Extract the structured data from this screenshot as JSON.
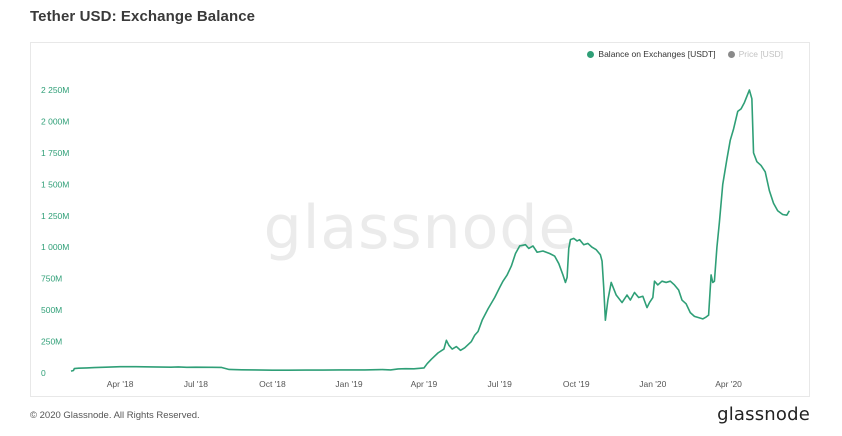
{
  "page": {
    "title": "Tether USD: Exchange Balance",
    "watermark": "glassnode",
    "copyright": "© 2020 Glassnode. All Rights Reserved.",
    "logo": "glassnode"
  },
  "legend": {
    "items": [
      {
        "label": "Balance on Exchanges [USDT]",
        "color": "#2f9f77",
        "active": true
      },
      {
        "label": "Price [USD]",
        "color": "#8a8a8a",
        "active": false
      }
    ]
  },
  "chart_data": {
    "type": "line",
    "title": "Tether USD: Exchange Balance",
    "xlabel": "",
    "ylabel": "",
    "ylim": [
      0,
      2250
    ],
    "y_ticks": [
      0,
      250,
      500,
      750,
      1000,
      1250,
      1500,
      1750,
      2000,
      2250
    ],
    "y_tick_labels": [
      "0",
      "250M",
      "500M",
      "750M",
      "1 000M",
      "1 250M",
      "1 500M",
      "1 750M",
      "2 000M",
      "2 250M"
    ],
    "x_tick_labels": [
      "Apr '18",
      "Jul '18",
      "Oct '18",
      "Jan '19",
      "Apr '19",
      "Jul '19",
      "Oct '19",
      "Jan '20",
      "Apr '20"
    ],
    "x_tick_dates": [
      "2018-04-01",
      "2018-07-01",
      "2018-10-01",
      "2019-01-01",
      "2019-04-01",
      "2019-07-01",
      "2019-10-01",
      "2020-01-01",
      "2020-04-01"
    ],
    "xlim": [
      "2018-02-01",
      "2020-06-15"
    ],
    "grid": false,
    "legend_position": "top-right",
    "series": [
      {
        "name": "Balance on Exchanges [USDT]",
        "color": "#2f9f77",
        "points": [
          [
            "2018-02-01",
            15
          ],
          [
            "2018-02-04",
            20
          ],
          [
            "2018-02-05",
            35
          ],
          [
            "2018-02-10",
            38
          ],
          [
            "2018-02-20",
            40
          ],
          [
            "2018-03-01",
            43
          ],
          [
            "2018-03-15",
            46
          ],
          [
            "2018-04-01",
            50
          ],
          [
            "2018-04-20",
            50
          ],
          [
            "2018-05-10",
            48
          ],
          [
            "2018-06-01",
            46
          ],
          [
            "2018-06-10",
            48
          ],
          [
            "2018-06-20",
            45
          ],
          [
            "2018-07-01",
            46
          ],
          [
            "2018-07-20",
            45
          ],
          [
            "2018-08-01",
            44
          ],
          [
            "2018-08-10",
            28
          ],
          [
            "2018-08-25",
            25
          ],
          [
            "2018-09-10",
            24
          ],
          [
            "2018-10-01",
            22
          ],
          [
            "2018-10-20",
            22
          ],
          [
            "2018-11-10",
            23
          ],
          [
            "2018-12-01",
            23
          ],
          [
            "2018-12-20",
            24
          ],
          [
            "2019-01-01",
            24
          ],
          [
            "2019-01-20",
            24
          ],
          [
            "2019-02-10",
            27
          ],
          [
            "2019-02-20",
            24
          ],
          [
            "2019-03-01",
            32
          ],
          [
            "2019-03-10",
            34
          ],
          [
            "2019-03-20",
            33
          ],
          [
            "2019-04-01",
            40
          ],
          [
            "2019-04-05",
            75
          ],
          [
            "2019-04-10",
            110
          ],
          [
            "2019-04-18",
            160
          ],
          [
            "2019-04-25",
            190
          ],
          [
            "2019-04-28",
            260
          ],
          [
            "2019-05-01",
            220
          ],
          [
            "2019-05-05",
            190
          ],
          [
            "2019-05-10",
            210
          ],
          [
            "2019-05-15",
            180
          ],
          [
            "2019-05-20",
            200
          ],
          [
            "2019-05-28",
            250
          ],
          [
            "2019-06-01",
            300
          ],
          [
            "2019-06-05",
            330
          ],
          [
            "2019-06-10",
            420
          ],
          [
            "2019-06-17",
            510
          ],
          [
            "2019-06-25",
            600
          ],
          [
            "2019-07-01",
            680
          ],
          [
            "2019-07-05",
            730
          ],
          [
            "2019-07-10",
            780
          ],
          [
            "2019-07-15",
            850
          ],
          [
            "2019-07-20",
            950
          ],
          [
            "2019-07-25",
            1010
          ],
          [
            "2019-08-01",
            1020
          ],
          [
            "2019-08-05",
            990
          ],
          [
            "2019-08-10",
            1010
          ],
          [
            "2019-08-15",
            960
          ],
          [
            "2019-08-22",
            970
          ],
          [
            "2019-08-30",
            950
          ],
          [
            "2019-09-05",
            930
          ],
          [
            "2019-09-10",
            870
          ],
          [
            "2019-09-15",
            780
          ],
          [
            "2019-09-18",
            720
          ],
          [
            "2019-09-20",
            760
          ],
          [
            "2019-09-22",
            990
          ],
          [
            "2019-09-24",
            1060
          ],
          [
            "2019-09-28",
            1070
          ],
          [
            "2019-10-02",
            1050
          ],
          [
            "2019-10-05",
            1060
          ],
          [
            "2019-10-10",
            1020
          ],
          [
            "2019-10-15",
            1030
          ],
          [
            "2019-10-20",
            1000
          ],
          [
            "2019-10-25",
            980
          ],
          [
            "2019-10-30",
            940
          ],
          [
            "2019-11-01",
            890
          ],
          [
            "2019-11-03",
            680
          ],
          [
            "2019-11-05",
            420
          ],
          [
            "2019-11-08",
            580
          ],
          [
            "2019-11-12",
            720
          ],
          [
            "2019-11-18",
            620
          ],
          [
            "2019-11-25",
            560
          ],
          [
            "2019-12-01",
            620
          ],
          [
            "2019-12-05",
            580
          ],
          [
            "2019-12-10",
            640
          ],
          [
            "2019-12-15",
            600
          ],
          [
            "2019-12-20",
            610
          ],
          [
            "2019-12-25",
            520
          ],
          [
            "2019-12-28",
            560
          ],
          [
            "2020-01-01",
            600
          ],
          [
            "2020-01-03",
            730
          ],
          [
            "2020-01-07",
            700
          ],
          [
            "2020-01-12",
            730
          ],
          [
            "2020-01-17",
            720
          ],
          [
            "2020-01-22",
            730
          ],
          [
            "2020-01-27",
            700
          ],
          [
            "2020-02-01",
            660
          ],
          [
            "2020-02-05",
            580
          ],
          [
            "2020-02-10",
            550
          ],
          [
            "2020-02-15",
            480
          ],
          [
            "2020-02-20",
            450
          ],
          [
            "2020-02-25",
            440
          ],
          [
            "2020-03-01",
            430
          ],
          [
            "2020-03-05",
            445
          ],
          [
            "2020-03-08",
            460
          ],
          [
            "2020-03-11",
            780
          ],
          [
            "2020-03-13",
            720
          ],
          [
            "2020-03-15",
            730
          ],
          [
            "2020-03-18",
            1000
          ],
          [
            "2020-03-21",
            1200
          ],
          [
            "2020-03-25",
            1500
          ],
          [
            "2020-03-30",
            1700
          ],
          [
            "2020-04-03",
            1850
          ],
          [
            "2020-04-07",
            1940
          ],
          [
            "2020-04-12",
            2080
          ],
          [
            "2020-04-16",
            2100
          ],
          [
            "2020-04-20",
            2150
          ],
          [
            "2020-04-23",
            2200
          ],
          [
            "2020-04-26",
            2250
          ],
          [
            "2020-04-29",
            2180
          ],
          [
            "2020-05-01",
            1750
          ],
          [
            "2020-05-05",
            1680
          ],
          [
            "2020-05-10",
            1650
          ],
          [
            "2020-05-15",
            1600
          ],
          [
            "2020-05-20",
            1450
          ],
          [
            "2020-05-25",
            1350
          ],
          [
            "2020-05-30",
            1290
          ],
          [
            "2020-06-05",
            1260
          ],
          [
            "2020-06-10",
            1255
          ],
          [
            "2020-06-13",
            1290
          ]
        ]
      }
    ]
  }
}
